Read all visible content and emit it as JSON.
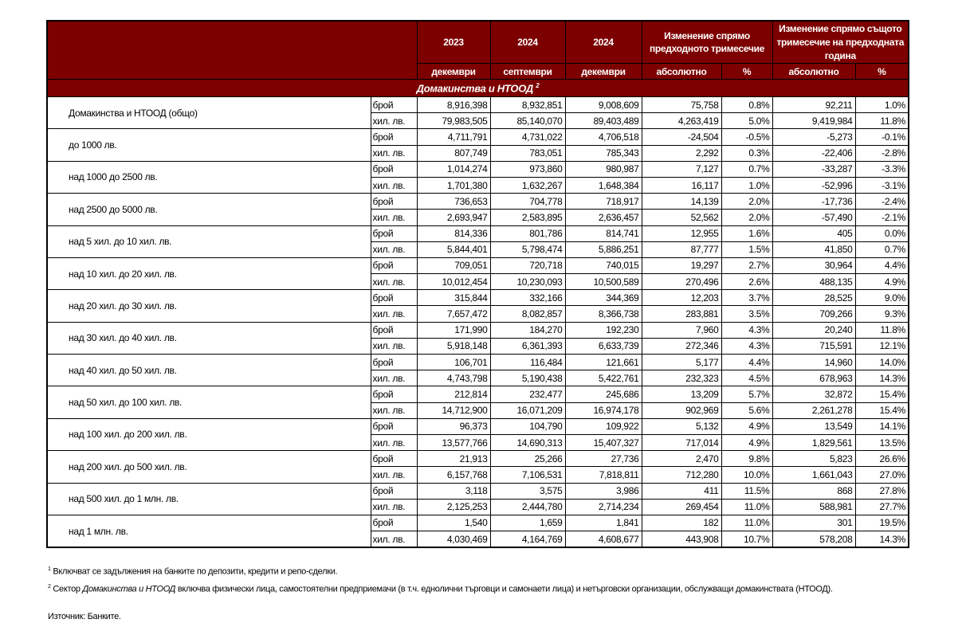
{
  "header": {
    "years": [
      "2023",
      "2024",
      "2024"
    ],
    "months": [
      "декември",
      "септември",
      "декември"
    ],
    "change_prev_quarter": "Изменение спрямо предходното тримесечие",
    "change_same_quarter": "Изменение спрямо същото тримесечие на предходната година",
    "absolute": "абсолютно",
    "percent": "%"
  },
  "section": {
    "title": "Домакинства и НТООД",
    "sup": "2"
  },
  "units": {
    "count": "брой",
    "amount": "хил. лв."
  },
  "groups": [
    {
      "label": "Домакинства и НТООД (общо)",
      "rows": [
        [
          "8,916,398",
          "8,932,851",
          "9,008,609",
          "75,758",
          "0.8%",
          "92,211",
          "1.0%"
        ],
        [
          "79,983,505",
          "85,140,070",
          "89,403,489",
          "4,263,419",
          "5.0%",
          "9,419,984",
          "11.8%"
        ]
      ]
    },
    {
      "label": "до 1000 лв.",
      "rows": [
        [
          "4,711,791",
          "4,731,022",
          "4,706,518",
          "-24,504",
          "-0.5%",
          "-5,273",
          "-0.1%"
        ],
        [
          "807,749",
          "783,051",
          "785,343",
          "2,292",
          "0.3%",
          "-22,406",
          "-2.8%"
        ]
      ]
    },
    {
      "label": "над 1000 до 2500 лв.",
      "rows": [
        [
          "1,014,274",
          "973,860",
          "980,987",
          "7,127",
          "0.7%",
          "-33,287",
          "-3.3%"
        ],
        [
          "1,701,380",
          "1,632,267",
          "1,648,384",
          "16,117",
          "1.0%",
          "-52,996",
          "-3.1%"
        ]
      ]
    },
    {
      "label": "над 2500 до 5000 лв.",
      "rows": [
        [
          "736,653",
          "704,778",
          "718,917",
          "14,139",
          "2.0%",
          "-17,736",
          "-2.4%"
        ],
        [
          "2,693,947",
          "2,583,895",
          "2,636,457",
          "52,562",
          "2.0%",
          "-57,490",
          "-2.1%"
        ]
      ]
    },
    {
      "label": "над 5 хил. до 10 хил. лв.",
      "rows": [
        [
          "814,336",
          "801,786",
          "814,741",
          "12,955",
          "1.6%",
          "405",
          "0.0%"
        ],
        [
          "5,844,401",
          "5,798,474",
          "5,886,251",
          "87,777",
          "1.5%",
          "41,850",
          "0.7%"
        ]
      ]
    },
    {
      "label": "над 10 хил. до 20 хил. лв.",
      "rows": [
        [
          "709,051",
          "720,718",
          "740,015",
          "19,297",
          "2.7%",
          "30,964",
          "4.4%"
        ],
        [
          "10,012,454",
          "10,230,093",
          "10,500,589",
          "270,496",
          "2.6%",
          "488,135",
          "4.9%"
        ]
      ]
    },
    {
      "label": "над 20 хил. до 30 хил. лв.",
      "rows": [
        [
          "315,844",
          "332,166",
          "344,369",
          "12,203",
          "3.7%",
          "28,525",
          "9.0%"
        ],
        [
          "7,657,472",
          "8,082,857",
          "8,366,738",
          "283,881",
          "3.5%",
          "709,266",
          "9.3%"
        ]
      ]
    },
    {
      "label": "над 30 хил. до 40 хил. лв.",
      "rows": [
        [
          "171,990",
          "184,270",
          "192,230",
          "7,960",
          "4.3%",
          "20,240",
          "11.8%"
        ],
        [
          "5,918,148",
          "6,361,393",
          "6,633,739",
          "272,346",
          "4.3%",
          "715,591",
          "12.1%"
        ]
      ]
    },
    {
      "label": "над 40 хил. до 50 хил. лв.",
      "rows": [
        [
          "106,701",
          "116,484",
          "121,661",
          "5,177",
          "4.4%",
          "14,960",
          "14.0%"
        ],
        [
          "4,743,798",
          "5,190,438",
          "5,422,761",
          "232,323",
          "4.5%",
          "678,963",
          "14.3%"
        ]
      ]
    },
    {
      "label": "над 50 хил. до 100 хил. лв.",
      "rows": [
        [
          "212,814",
          "232,477",
          "245,686",
          "13,209",
          "5.7%",
          "32,872",
          "15.4%"
        ],
        [
          "14,712,900",
          "16,071,209",
          "16,974,178",
          "902,969",
          "5.6%",
          "2,261,278",
          "15.4%"
        ]
      ]
    },
    {
      "label": "над 100 хил. до 200 хил. лв.",
      "rows": [
        [
          "96,373",
          "104,790",
          "109,922",
          "5,132",
          "4.9%",
          "13,549",
          "14.1%"
        ],
        [
          "13,577,766",
          "14,690,313",
          "15,407,327",
          "717,014",
          "4.9%",
          "1,829,561",
          "13.5%"
        ]
      ]
    },
    {
      "label": "над 200 хил. до 500 хил. лв.",
      "rows": [
        [
          "21,913",
          "25,266",
          "27,736",
          "2,470",
          "9.8%",
          "5,823",
          "26.6%"
        ],
        [
          "6,157,768",
          "7,106,531",
          "7,818,811",
          "712,280",
          "10.0%",
          "1,661,043",
          "27.0%"
        ]
      ]
    },
    {
      "label": "над 500 хил. до 1 млн. лв.",
      "rows": [
        [
          "3,118",
          "3,575",
          "3,986",
          "411",
          "11.5%",
          "868",
          "27.8%"
        ],
        [
          "2,125,253",
          "2,444,780",
          "2,714,234",
          "269,454",
          "11.0%",
          "588,981",
          "27.7%"
        ]
      ]
    },
    {
      "label": "над 1 млн. лв.",
      "rows": [
        [
          "1,540",
          "1,659",
          "1,841",
          "182",
          "11.0%",
          "301",
          "19.5%"
        ],
        [
          "4,030,469",
          "4,164,769",
          "4,608,677",
          "443,908",
          "10.7%",
          "578,208",
          "14.3%"
        ]
      ]
    }
  ],
  "footnotes": [
    {
      "num": "1",
      "text": "Включват се задължения на банките по депозити, кредити и репо-сделки."
    },
    {
      "num": "2",
      "pre": "Сектор ",
      "italic": "Домакинства и НТООД",
      "text": "  включва физически лица, самостоятелни предприемачи (в т.ч. еднолични търговци и самонаети лица) и нетърговски организации, обслужващи домакинствата (НТООД)."
    }
  ],
  "source": "Източник: Банките."
}
